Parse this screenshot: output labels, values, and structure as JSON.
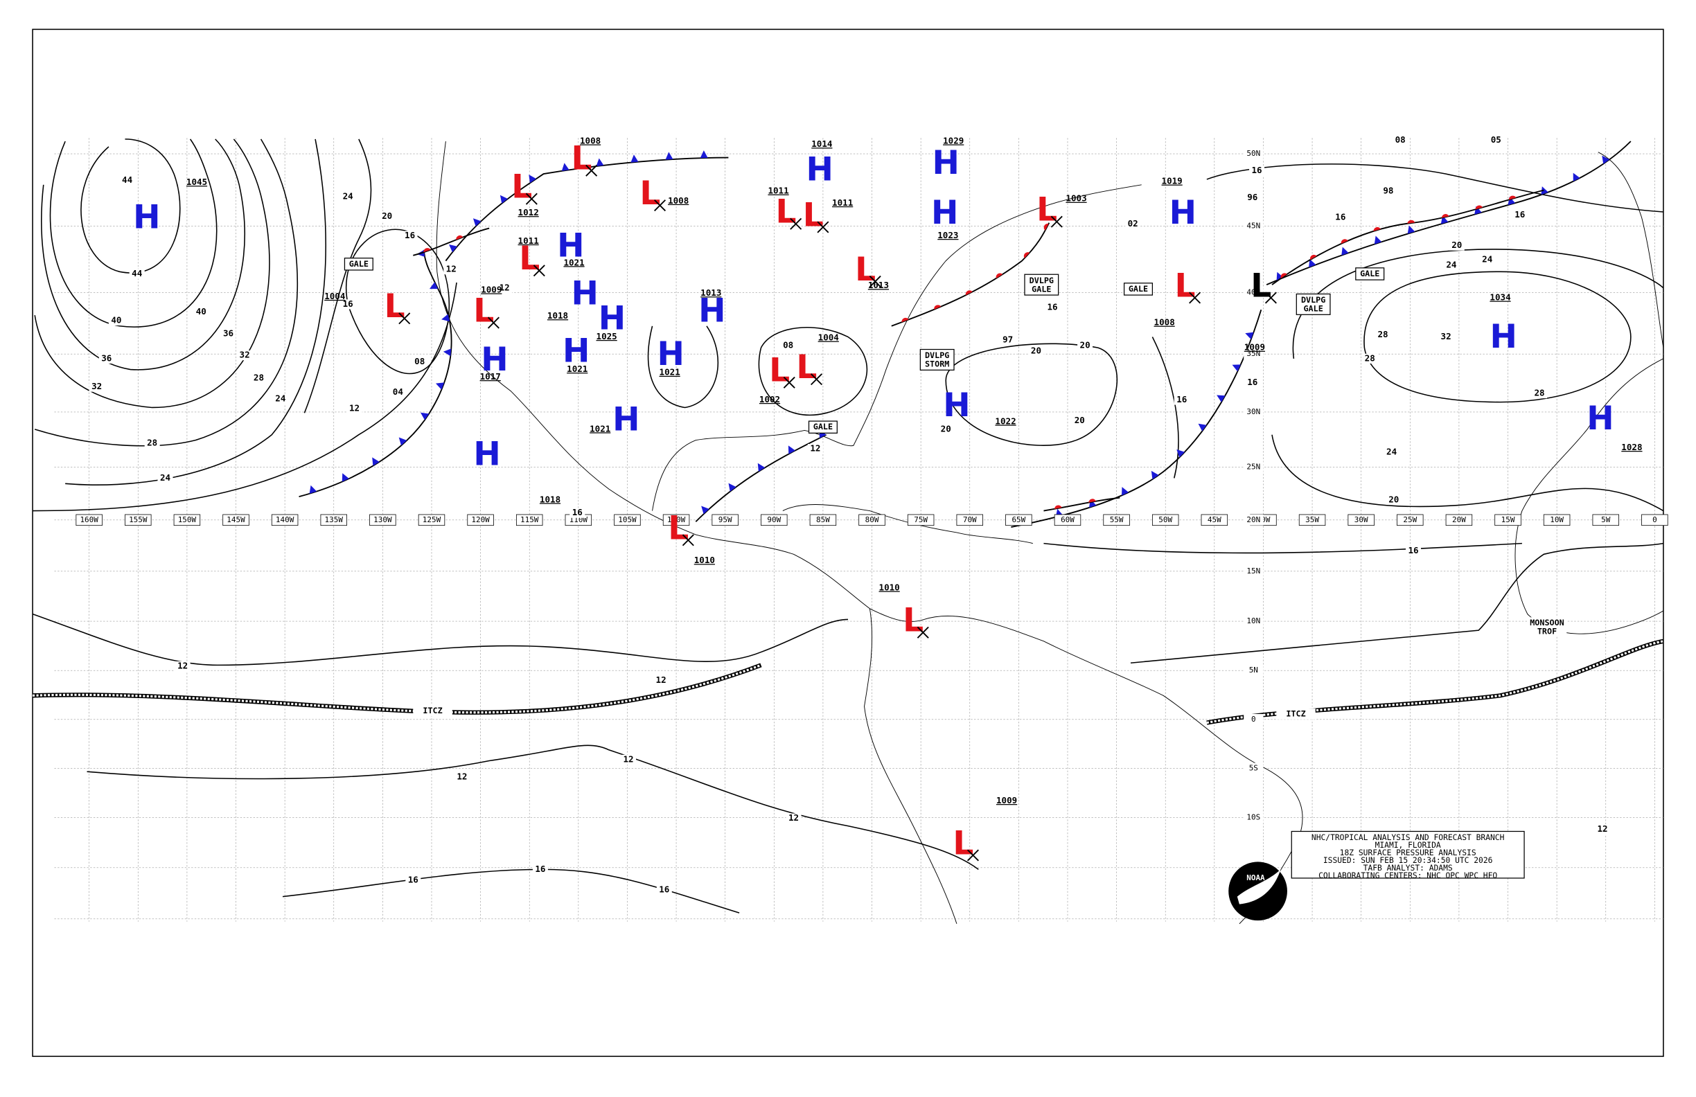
{
  "title_block": {
    "lines": [
      "NHC/TROPICAL ANALYSIS AND FORECAST BRANCH",
      "MIAMI, FLORIDA",
      "18Z SURFACE PRESSURE ANALYSIS",
      "ISSUED: SUN FEB 15 20:34:50 UTC 2026",
      "TAFB ANALYST: ADAMS",
      "COLLABORATING CENTERS: NHC OPC WPC HFO"
    ]
  },
  "logo": "NOAA",
  "longitude_labels": [
    "160W",
    "155W",
    "150W",
    "145W",
    "140W",
    "135W",
    "130W",
    "125W",
    "120W",
    "115W",
    "110W",
    "105W",
    "100W",
    "95W",
    "90W",
    "85W",
    "80W",
    "75W",
    "70W",
    "65W",
    "60W",
    "55W",
    "50W",
    "45W",
    "40W",
    "35W",
    "30W",
    "25W",
    "20W",
    "15W",
    "10W",
    "5W",
    "0"
  ],
  "latitude_labels": [
    "50N",
    "45N",
    "40N",
    "35N",
    "30N",
    "25N",
    "20N",
    "15N",
    "10N",
    "5N",
    "0",
    "5S",
    "10S"
  ],
  "pressure_centers": [
    {
      "symbol": "H",
      "pressure": "1045",
      "color": "#1a1ad6"
    },
    {
      "symbol": "L",
      "pressure": "1004",
      "color": "#e3141b"
    },
    {
      "symbol": "L",
      "pressure": "1009",
      "color": "#e3141b"
    },
    {
      "symbol": "H",
      "pressure": "1017",
      "color": "#1a1ad6"
    },
    {
      "symbol": "H",
      "pressure": "1018",
      "color": "#1a1ad6"
    },
    {
      "symbol": "L",
      "pressure": "1012",
      "color": "#e3141b"
    },
    {
      "symbol": "L",
      "pressure": "1008",
      "color": "#e3141b"
    },
    {
      "symbol": "L",
      "pressure": "1008",
      "color": "#e3141b"
    },
    {
      "symbol": "L",
      "pressure": "1011",
      "color": "#e3141b"
    },
    {
      "symbol": "H",
      "pressure": "1021",
      "color": "#1a1ad6"
    },
    {
      "symbol": "H",
      "pressure": "1018",
      "color": "#1a1ad6"
    },
    {
      "symbol": "H",
      "pressure": "1025",
      "color": "#1a1ad6"
    },
    {
      "symbol": "H",
      "pressure": "1021",
      "color": "#1a1ad6"
    },
    {
      "symbol": "H",
      "pressure": "1021",
      "color": "#1a1ad6"
    },
    {
      "symbol": "H",
      "pressure": "1013",
      "color": "#1a1ad6"
    },
    {
      "symbol": "H",
      "pressure": "1021",
      "color": "#1a1ad6"
    },
    {
      "symbol": "L",
      "pressure": "1010",
      "color": "#e3141b"
    },
    {
      "symbol": "L",
      "pressure": "1011",
      "color": "#e3141b"
    },
    {
      "symbol": "L",
      "pressure": "1011",
      "color": "#e3141b"
    },
    {
      "symbol": "H",
      "pressure": "1014",
      "color": "#1a1ad6"
    },
    {
      "symbol": "L",
      "pressure": "1013",
      "color": "#e3141b"
    },
    {
      "symbol": "H",
      "pressure": "1029",
      "color": "#1a1ad6"
    },
    {
      "symbol": "H",
      "pressure": "1023",
      "color": "#1a1ad6"
    },
    {
      "symbol": "L",
      "pressure": "1002",
      "color": "#e3141b"
    },
    {
      "symbol": "L",
      "pressure": "1004",
      "color": "#e3141b"
    },
    {
      "symbol": "L",
      "pressure": "1003",
      "color": "#e3141b"
    },
    {
      "symbol": "H",
      "pressure": "1022",
      "color": "#1a1ad6"
    },
    {
      "symbol": "H",
      "pressure": "1019",
      "color": "#1a1ad6"
    },
    {
      "symbol": "L",
      "pressure": "1008",
      "color": "#e3141b"
    },
    {
      "symbol": "L",
      "pressure": "1009",
      "color": "#000000"
    },
    {
      "symbol": "H",
      "pressure": "1034",
      "color": "#1a1ad6"
    },
    {
      "symbol": "H",
      "pressure": "1028",
      "color": "#1a1ad6"
    },
    {
      "symbol": "L",
      "pressure": "1010",
      "color": "#e3141b"
    },
    {
      "symbol": "L",
      "pressure": "1009",
      "color": "#e3141b"
    }
  ],
  "isobar_labels": [
    "44",
    "44",
    "40",
    "40",
    "36",
    "36",
    "32",
    "32",
    "28",
    "28",
    "24",
    "24",
    "24",
    "20",
    "16",
    "16",
    "12",
    "12",
    "08",
    "04",
    "12",
    "12",
    "16",
    "16",
    "16",
    "16",
    "16",
    "16",
    "16",
    "20",
    "20",
    "20",
    "20",
    "20",
    "20",
    "24",
    "24",
    "24",
    "28",
    "28",
    "28",
    "32",
    "16",
    "12",
    "12",
    "12",
    "12",
    "12",
    "12",
    "16",
    "16",
    "16",
    "98",
    "08",
    "05",
    "96",
    "97",
    "02",
    "08"
  ],
  "boxed_labels": [
    "GALE",
    "DVLPG GALE",
    "GALE",
    "DVLPG GALE",
    "GALE",
    "DVLPG STORM",
    "GALE"
  ],
  "feature_labels": [
    "ITCZ",
    "ITCZ",
    "MONSOON TROF"
  ]
}
